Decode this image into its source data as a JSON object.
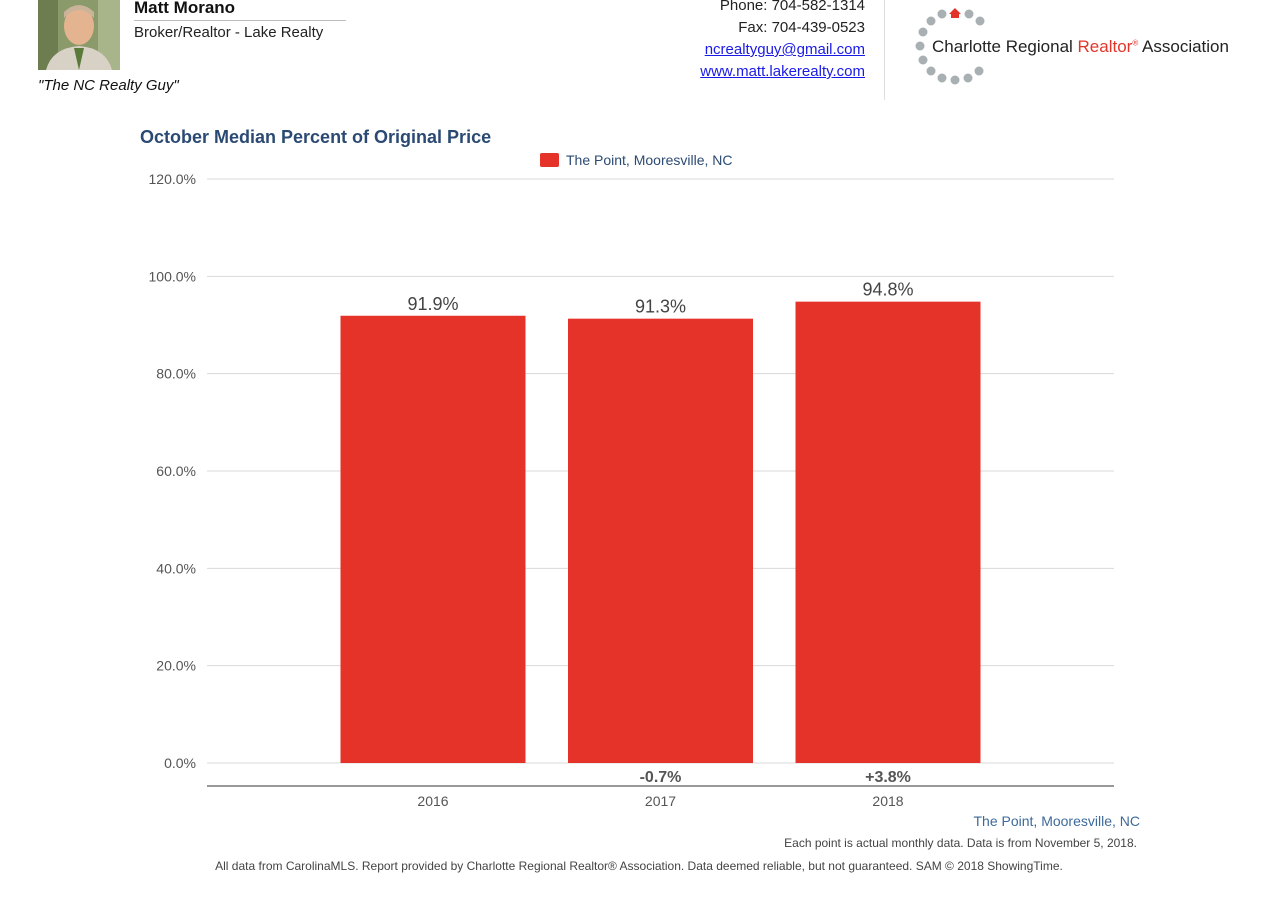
{
  "header": {
    "agent_name": "Matt Morano",
    "agent_title": "Broker/Realtor - Lake Realty",
    "tagline": "\"The NC Realty Guy\"",
    "phone": "Phone: 704-582-1314",
    "fax": "Fax: 704-439-0523",
    "email": "ncrealtyguy@gmail.com",
    "website": "www.matt.lakerealty.com",
    "logo": {
      "part1": "Charlotte Regional ",
      "part2": "Realtor",
      "reg": "®",
      "part3": " Association"
    }
  },
  "chart_data": {
    "type": "bar",
    "title": "October Median Percent of Original Price",
    "categories": [
      "2016",
      "2017",
      "2018"
    ],
    "series": [
      {
        "name": "The Point, Mooresville, NC",
        "color": "#e6332a",
        "values": [
          91.9,
          91.3,
          94.8
        ]
      }
    ],
    "data_labels": [
      "91.9%",
      "91.3%",
      "94.8%"
    ],
    "change_labels": [
      "",
      "-0.7%",
      "+3.8%"
    ],
    "ylim": [
      0,
      120
    ],
    "yticks": [
      0,
      20,
      40,
      60,
      80,
      100,
      120
    ],
    "ytick_labels": [
      "0.0%",
      "20.0%",
      "40.0%",
      "60.0%",
      "80.0%",
      "100.0%",
      "120.0%"
    ],
    "grid": true,
    "legend": "top-center"
  },
  "footer": {
    "location": "The Point, Mooresville, NC",
    "note": "Each point is actual monthly data. Data is from November 5, 2018.",
    "disclaimer": "All data from CarolinaMLS. Report provided by Charlotte Regional Realtor® Association. Data deemed reliable, but not guaranteed. SAM © 2018 ShowingTime."
  },
  "colors": {
    "bar": "#e6332a",
    "title": "#2b4a73",
    "link": "#1a1ae6",
    "grid": "#d9d9d9"
  }
}
